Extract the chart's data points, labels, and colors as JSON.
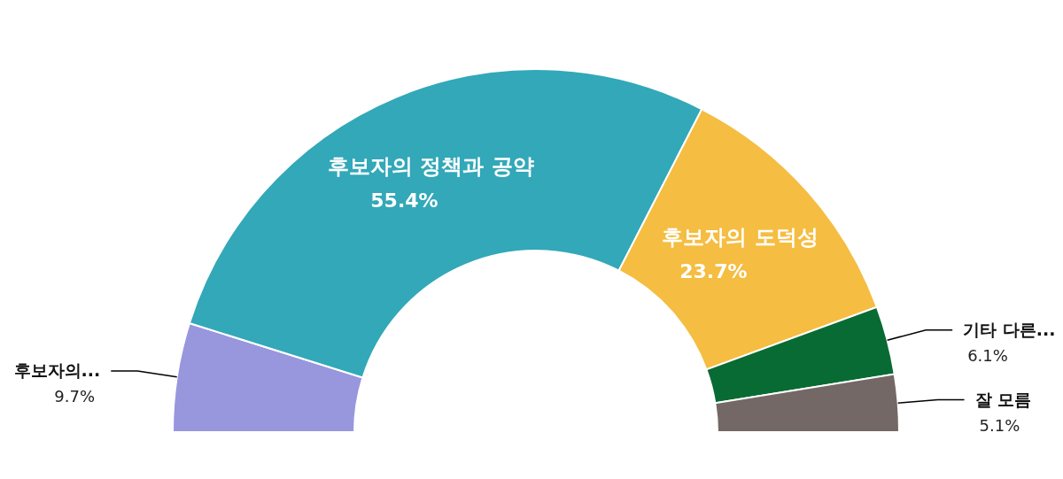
{
  "chart_data": {
    "type": "donut",
    "categories": [
      "후보자의...",
      "후보자의 정책과 공약",
      "후보자의 도덕성",
      "기타 다른...",
      "잘 모름"
    ],
    "values": [
      9.7,
      55.4,
      23.7,
      6.1,
      5.1
    ],
    "colors": [
      "#9896dd",
      "#32a8b8",
      "#f5bd41",
      "#086b34",
      "#736866"
    ],
    "value_labels": [
      "9.7%",
      "55.4%",
      "23.7%",
      "6.1%",
      "5.1%"
    ],
    "legend": false
  }
}
